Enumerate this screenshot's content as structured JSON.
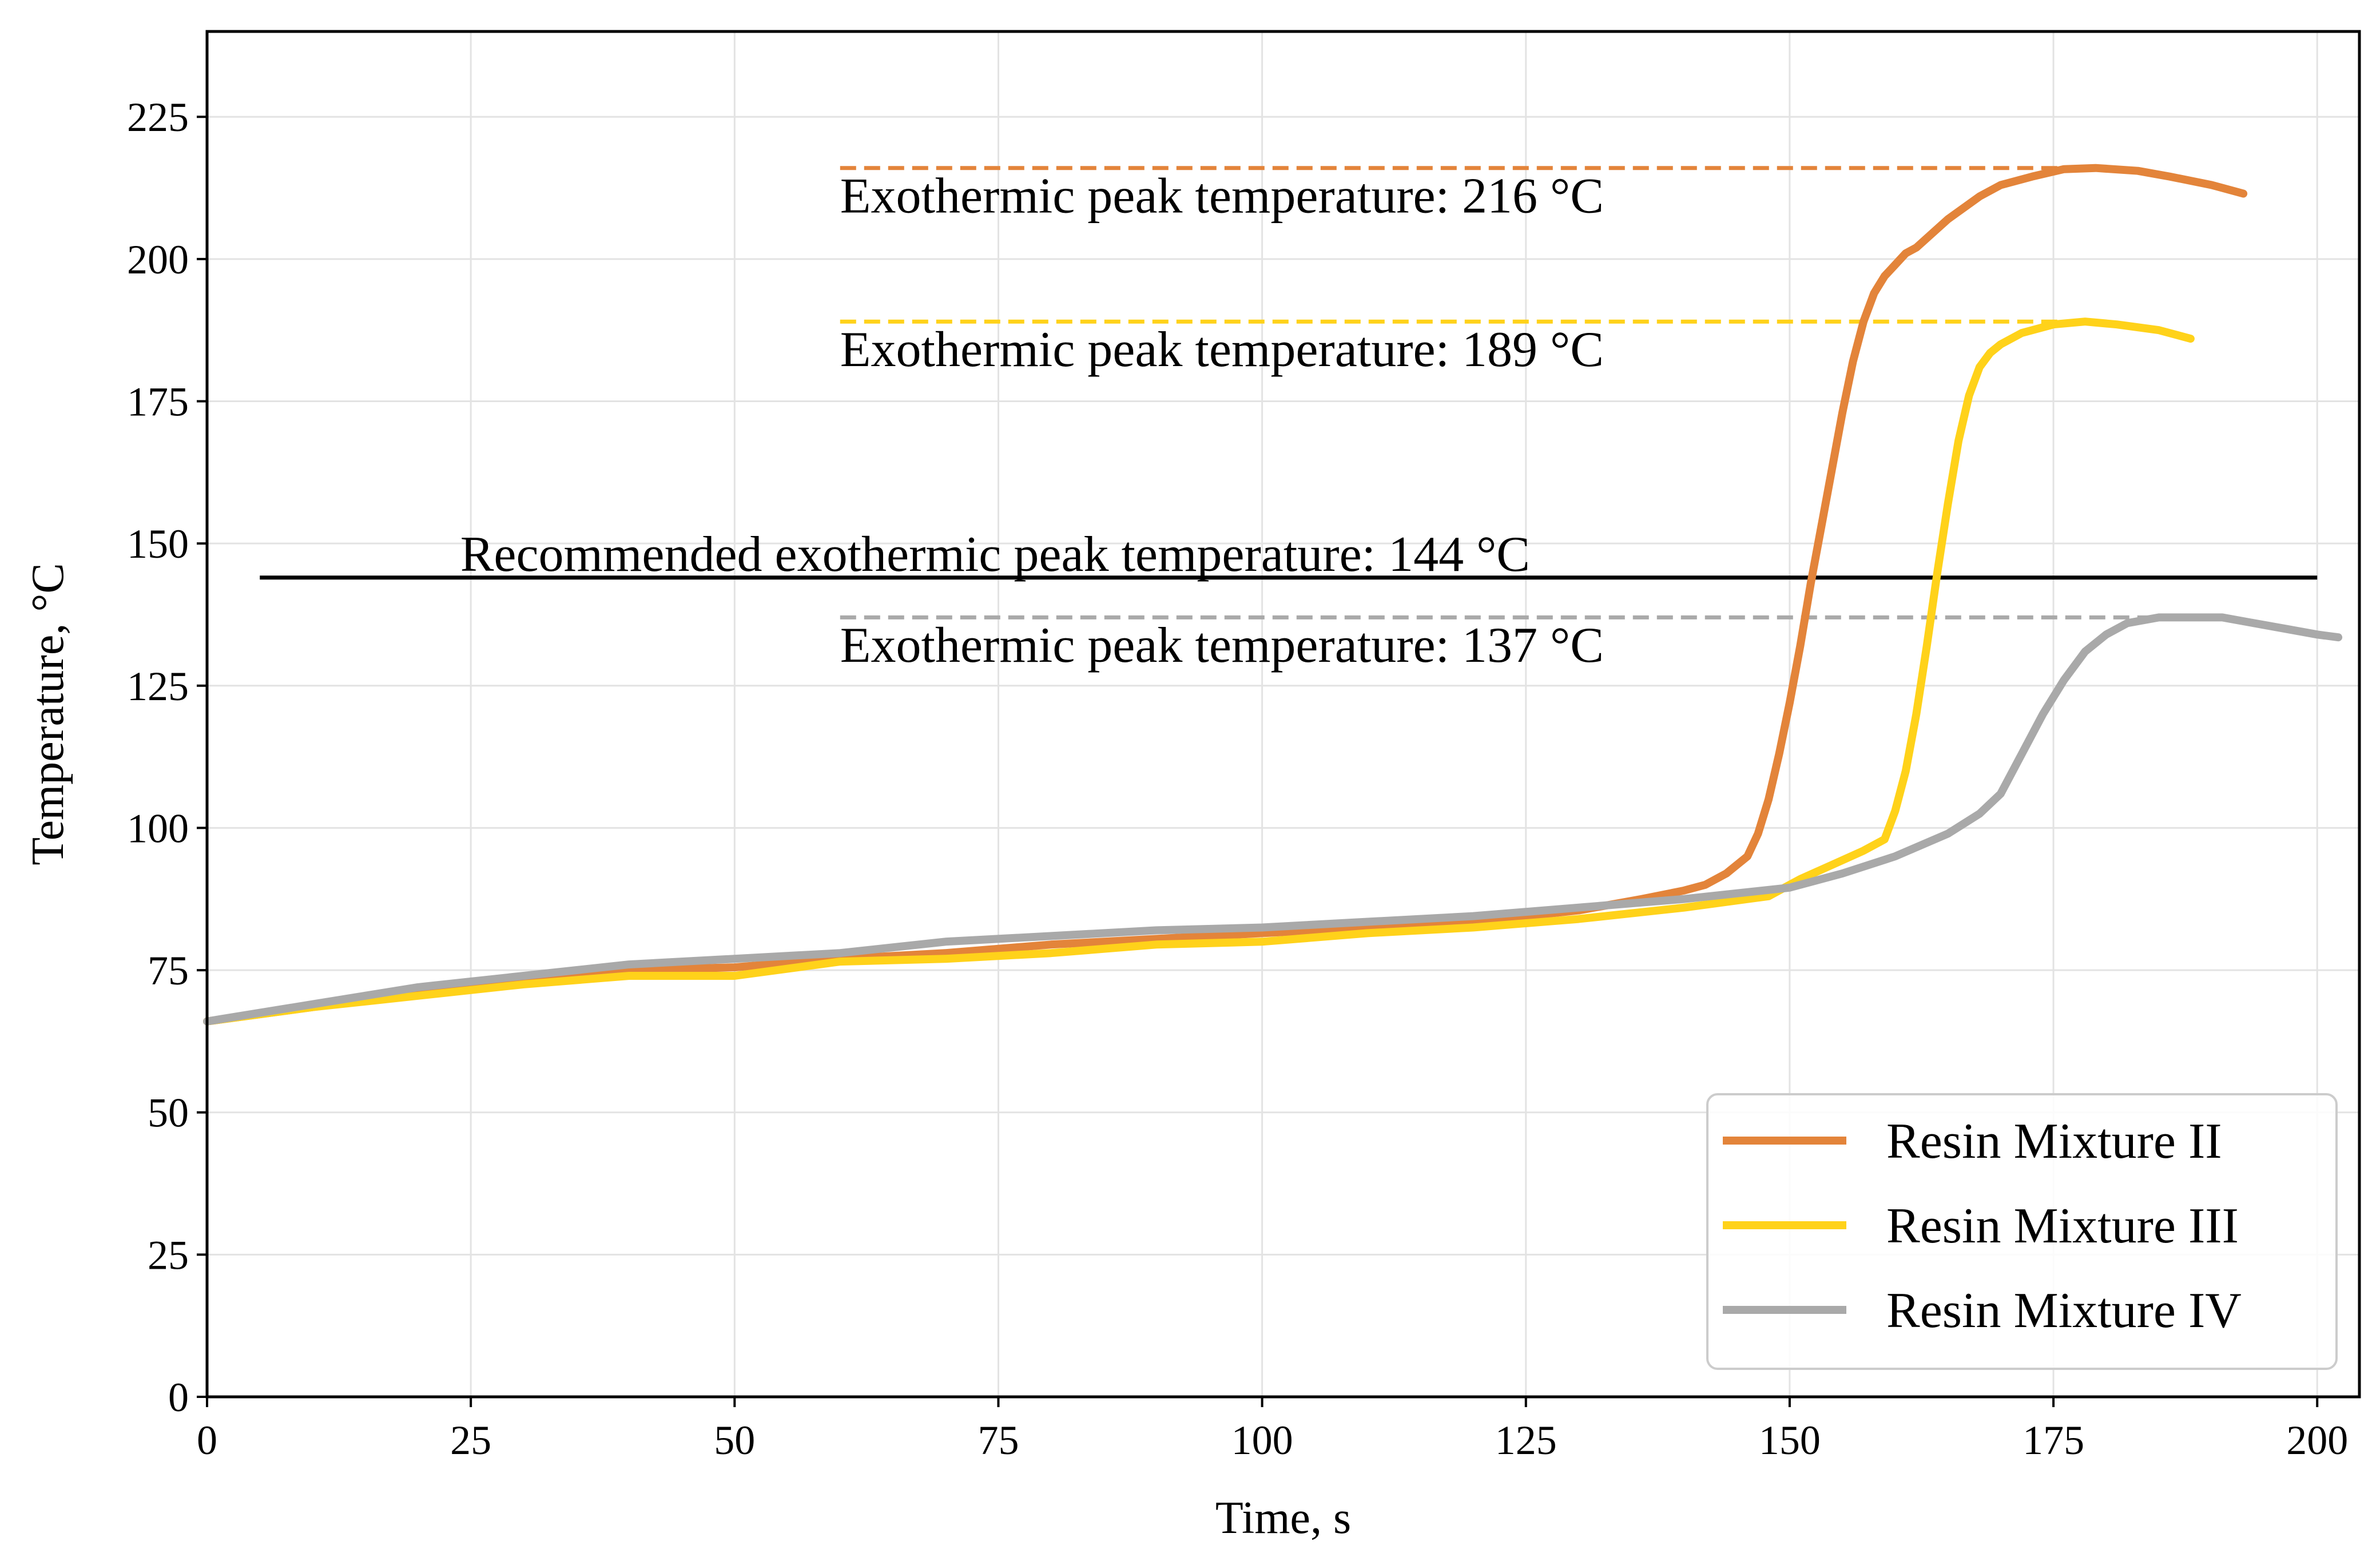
{
  "chart_data": {
    "type": "line",
    "xlabel": "Time, s",
    "ylabel": "Temperature, °C",
    "xlim": [
      0,
      204
    ],
    "ylim": [
      0,
      240
    ],
    "xticks": [
      0,
      25,
      50,
      75,
      100,
      125,
      150,
      175,
      200
    ],
    "yticks": [
      0,
      25,
      50,
      75,
      100,
      125,
      150,
      175,
      200,
      225
    ],
    "grid": true,
    "legend_position": "bottom-right",
    "series": [
      {
        "name": "Resin Mixture II",
        "color": "#E3843A",
        "x": [
          0,
          10,
          20,
          30,
          40,
          50,
          60,
          70,
          80,
          90,
          100,
          110,
          120,
          130,
          136,
          140,
          142,
          144,
          146,
          147,
          148,
          149,
          150,
          151,
          152,
          153,
          154,
          155,
          156,
          157,
          158,
          159,
          160,
          161,
          162,
          165,
          168,
          170,
          173,
          176,
          179,
          183,
          186,
          190,
          193
        ],
        "y": [
          66,
          68.5,
          71,
          73,
          75,
          75.5,
          77,
          78,
          79.5,
          80.5,
          81.5,
          82.5,
          83.5,
          85.5,
          87.5,
          89,
          90,
          92,
          95,
          99,
          105,
          113,
          122,
          132,
          143,
          153,
          163,
          173,
          182,
          189,
          194,
          197,
          199,
          201,
          202,
          207,
          211,
          213,
          214.5,
          215.8,
          216,
          215.5,
          214.5,
          213,
          211.5
        ]
      },
      {
        "name": "Resin Mixture III",
        "color": "#FFD21A",
        "x": [
          0,
          10,
          20,
          30,
          40,
          50,
          60,
          70,
          80,
          90,
          100,
          110,
          120,
          130,
          140,
          148,
          151,
          154,
          157,
          159,
          160,
          161,
          162,
          163,
          164,
          165,
          166,
          167,
          168,
          169,
          170,
          172,
          175,
          178,
          181,
          185,
          188
        ],
        "y": [
          66,
          68.5,
          70.5,
          72.5,
          74,
          74,
          76.5,
          77,
          78,
          79.5,
          80,
          81.5,
          82.5,
          84,
          86,
          88,
          91,
          93.5,
          96,
          98,
          103,
          110,
          120,
          132,
          145,
          157,
          168,
          176,
          181,
          183.5,
          185,
          187,
          188.5,
          189,
          188.5,
          187.5,
          186
        ]
      },
      {
        "name": "Resin Mixture IV",
        "color": "#A9A9A9",
        "x": [
          0,
          10,
          20,
          30,
          40,
          50,
          60,
          70,
          80,
          90,
          100,
          110,
          120,
          130,
          140,
          150,
          155,
          160,
          165,
          168,
          170,
          172,
          174,
          176,
          178,
          180,
          182,
          185,
          188,
          191,
          194,
          197,
          200,
          202
        ],
        "y": [
          66,
          69,
          72,
          74,
          76,
          77,
          78,
          80,
          81,
          82,
          82.5,
          83.5,
          84.5,
          86,
          87.5,
          89.5,
          92,
          95,
          99,
          102.5,
          106,
          113,
          120,
          126,
          131,
          134,
          136,
          137,
          137,
          137,
          136,
          135,
          134,
          133.5
        ]
      }
    ],
    "reference_lines": [
      {
        "y": 216,
        "x_from": 60,
        "x_to": 179,
        "style": "dashed",
        "color": "#E3843A",
        "label": "Exothermic peak temperature: 216 °C",
        "label_x": 60,
        "label_y": 211
      },
      {
        "y": 189,
        "x_from": 60,
        "x_to": 176,
        "style": "dashed",
        "color": "#FFD21A",
        "label": "Exothermic peak temperature: 189 °C",
        "label_x": 60,
        "label_y": 184
      },
      {
        "y": 144,
        "x_from": 5,
        "x_to": 200,
        "style": "solid",
        "color": "#000000",
        "label": "Recommended exothermic peak temperature: 144 °C",
        "label_x": 24,
        "label_y": 148
      },
      {
        "y": 137,
        "x_from": 60,
        "x_to": 186,
        "style": "dashed",
        "color": "#A9A9A9",
        "label": "Exothermic peak temperature: 137 °C",
        "label_x": 60,
        "label_y": 132
      }
    ]
  }
}
